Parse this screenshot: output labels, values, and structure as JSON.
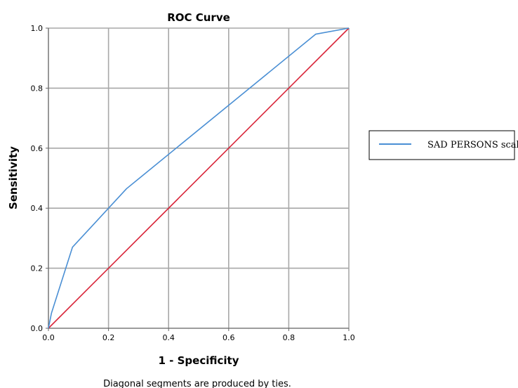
{
  "chart_data": {
    "type": "line",
    "title": "ROC Curve",
    "xlabel": "1 - Specificity",
    "ylabel": "Sensitivity",
    "xlim": [
      0,
      1
    ],
    "ylim": [
      0,
      1
    ],
    "xticks": [
      "0.0",
      "0.2",
      "0.4",
      "0.6",
      "0.8",
      "1.0"
    ],
    "yticks": [
      "0.0",
      "0.2",
      "0.4",
      "0.6",
      "0.8",
      "1.0"
    ],
    "grid": true,
    "legend_position": "right",
    "footnote": "Diagonal segments are produced by ties.",
    "series": [
      {
        "name": "SAD PERSONS scale",
        "color": "#4a8fd4",
        "x": [
          0.0,
          0.01,
          0.08,
          0.26,
          0.89,
          1.0
        ],
        "y": [
          0.0,
          0.05,
          0.27,
          0.465,
          0.98,
          1.0
        ]
      },
      {
        "color": "#d9263a",
        "x": [
          0.0,
          1.0
        ],
        "y": [
          0.0,
          1.0
        ]
      }
    ]
  }
}
